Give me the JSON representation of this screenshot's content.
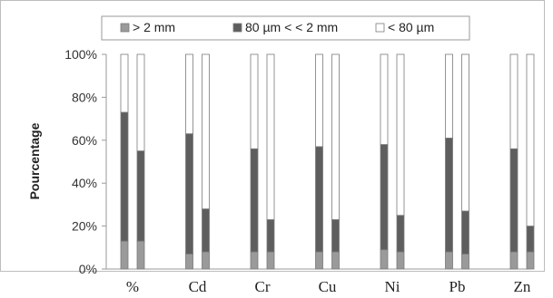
{
  "chart_data": {
    "type": "bar",
    "stacked": true,
    "normalized": true,
    "ylabel": "Pourcentage",
    "xlabel": "",
    "ylim": [
      0,
      100
    ],
    "y_ticks": [
      "0%",
      "20%",
      "40%",
      "60%",
      "80%",
      "100%"
    ],
    "grid": false,
    "legend_position": "top",
    "categories": [
      "%",
      "Cd",
      "Cr",
      "Cu",
      "Ni",
      "Pb",
      "Zn"
    ],
    "bars_per_category": 2,
    "series": [
      {
        "name": "> 2 mm",
        "color": "#9a9a9a",
        "values": [
          [
            13,
            13
          ],
          [
            7,
            8
          ],
          [
            8,
            8
          ],
          [
            8,
            8
          ],
          [
            9,
            8
          ],
          [
            8,
            7
          ],
          [
            8,
            8
          ]
        ]
      },
      {
        "name": "80 µm < < 2 mm",
        "color": "#5e5e5e",
        "values": [
          [
            60,
            42
          ],
          [
            56,
            20
          ],
          [
            48,
            15
          ],
          [
            49,
            15
          ],
          [
            49,
            17
          ],
          [
            53,
            20
          ],
          [
            48,
            12
          ]
        ]
      },
      {
        "name": "< 80 µm",
        "color": "#ffffff",
        "values": [
          [
            27,
            45
          ],
          [
            37,
            72
          ],
          [
            44,
            77
          ],
          [
            43,
            77
          ],
          [
            42,
            75
          ],
          [
            39,
            73
          ],
          [
            44,
            80
          ]
        ]
      }
    ]
  }
}
